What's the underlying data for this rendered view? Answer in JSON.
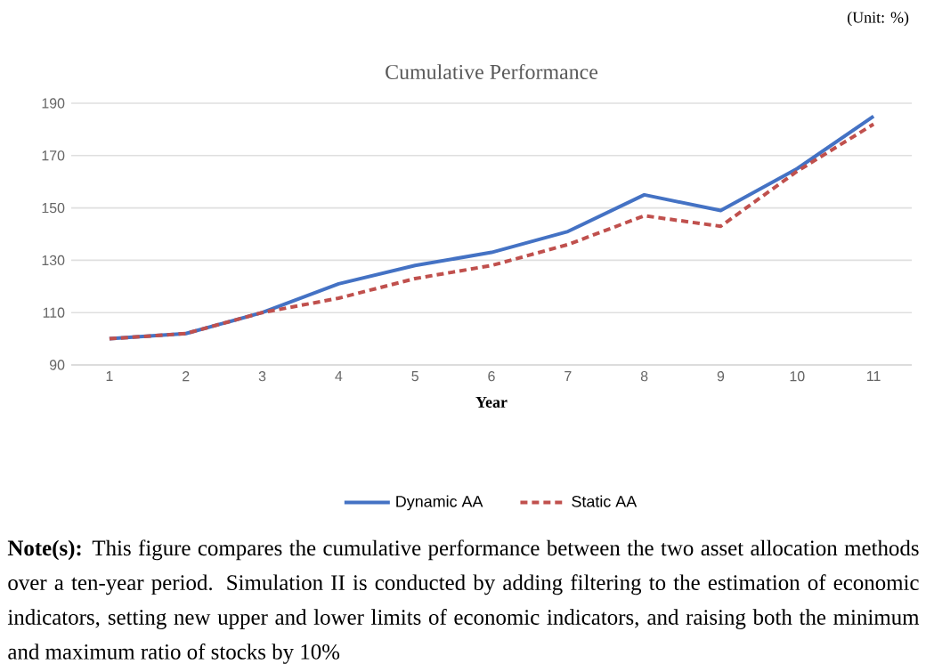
{
  "chart_data": {
    "type": "line",
    "title": "Cumulative Performance",
    "xlabel": "Year",
    "categories": [
      "1",
      "2",
      "3",
      "4",
      "5",
      "6",
      "7",
      "8",
      "9",
      "10",
      "11"
    ],
    "series": [
      {
        "name": "Dynamic AA",
        "color": "#4472c4",
        "line_style": "solid",
        "values": [
          100,
          102,
          110,
          121,
          128,
          133,
          141,
          155,
          149,
          165,
          185
        ]
      },
      {
        "name": "Static AA",
        "color": "#c0504d",
        "line_style": "dashed",
        "values": [
          100,
          102,
          110,
          115.5,
          123,
          128,
          136,
          147,
          143,
          164,
          182
        ]
      }
    ],
    "ylim": [
      90,
      190
    ],
    "yticks": [
      90,
      110,
      130,
      150,
      170,
      190
    ],
    "grid": "y",
    "legend": "bottom",
    "marker": "none",
    "annotations": [
      "(Unit: %)",
      "**Note(s):** This figure compares the cumulative performance between the two asset allocation methods over a ten-year period. Simulation II is conducted by adding filtering to the estimation of economic indicators, setting new upper and lower limits of economic indicators, and raising both the minimum and maximum ratio of stocks by 10%"
    ]
  }
}
